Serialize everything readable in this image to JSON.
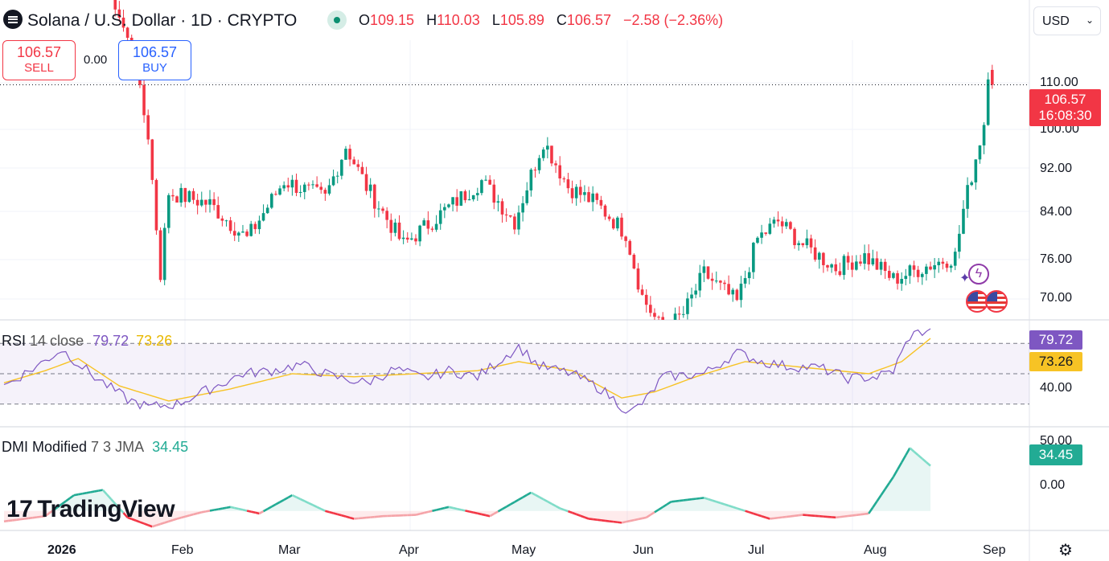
{
  "header": {
    "title": "Solana / U.S. Dollar · 1D · CRYPTO",
    "ohlc": [
      {
        "key": "O",
        "value": "109.15"
      },
      {
        "key": "H",
        "value": "110.03"
      },
      {
        "key": "L",
        "value": "105.89"
      },
      {
        "key": "C",
        "value": "106.57"
      },
      {
        "key": "",
        "value": "−2.58 (−2.36%)"
      }
    ],
    "currency": "USD"
  },
  "trade": {
    "sell_price": "106.57",
    "sell_label": "SELL",
    "spread": "0.00",
    "buy_price": "106.57",
    "buy_label": "BUY"
  },
  "price_axis": {
    "labels": [
      "110.00",
      "100.00",
      "92.00",
      "84.00",
      "76.00",
      "70.00"
    ],
    "last_price": "106.57",
    "countdown": "16:08:30"
  },
  "rsi": {
    "label": "RSI",
    "params": "14 close",
    "value": "79.72",
    "ma_value": "73.26",
    "axis_label": "40.00"
  },
  "dmi": {
    "label": "DMI Modified",
    "params": "7 3 JMA",
    "value": "34.45",
    "axis_labels": [
      "50.00",
      "0.00"
    ]
  },
  "time_axis": [
    "2026",
    "Feb",
    "Mar",
    "Apr",
    "May",
    "Jun",
    "Jul",
    "Aug",
    "Sep"
  ],
  "branding": "TradingView",
  "colors": {
    "up": "#089981",
    "down": "#f23645",
    "rsi": "#7e57c2",
    "rsi_ma": "#f7c325",
    "dmi": "#22ab94"
  },
  "chart_data": [
    {
      "type": "candlestick",
      "title": "Solana / U.S. Dollar · 1D · CRYPTO",
      "ylim": [
        66,
        114
      ],
      "x_range": [
        "2026-01-01",
        "2026-09-01"
      ],
      "anchors": [
        {
          "date": "2026-01-10",
          "close": 128
        },
        {
          "date": "2026-01-25",
          "close": 127
        },
        {
          "date": "2026-02-01",
          "close": 112
        },
        {
          "date": "2026-02-05",
          "close": 98
        },
        {
          "date": "2026-02-08",
          "close": 74
        },
        {
          "date": "2026-02-10",
          "close": 88
        },
        {
          "date": "2026-02-20",
          "close": 86
        },
        {
          "date": "2026-03-01",
          "close": 80
        },
        {
          "date": "2026-03-10",
          "close": 90
        },
        {
          "date": "2026-03-20",
          "close": 87
        },
        {
          "date": "2026-03-25",
          "close": 96
        },
        {
          "date": "2026-03-30",
          "close": 89
        },
        {
          "date": "2026-04-08",
          "close": 79
        },
        {
          "date": "2026-04-20",
          "close": 86
        },
        {
          "date": "2026-04-27",
          "close": 90
        },
        {
          "date": "2026-05-05",
          "close": 83
        },
        {
          "date": "2026-05-12",
          "close": 97
        },
        {
          "date": "2026-05-18",
          "close": 89
        },
        {
          "date": "2026-05-25",
          "close": 86
        },
        {
          "date": "2026-06-01",
          "close": 81
        },
        {
          "date": "2026-06-05",
          "close": 70
        },
        {
          "date": "2026-06-10",
          "close": 64
        },
        {
          "date": "2026-06-15",
          "close": 67
        },
        {
          "date": "2026-06-20",
          "close": 74
        },
        {
          "date": "2026-06-28",
          "close": 69
        },
        {
          "date": "2026-07-03",
          "close": 80
        },
        {
          "date": "2026-07-08",
          "close": 83
        },
        {
          "date": "2026-07-14",
          "close": 79
        },
        {
          "date": "2026-07-22",
          "close": 75
        },
        {
          "date": "2026-07-29",
          "close": 77
        },
        {
          "date": "2026-08-05",
          "close": 73
        },
        {
          "date": "2026-08-12",
          "close": 75
        },
        {
          "date": "2026-08-20",
          "close": 77
        },
        {
          "date": "2026-08-22",
          "close": 85
        },
        {
          "date": "2026-08-25",
          "close": 94
        },
        {
          "date": "2026-08-27",
          "close": 100
        },
        {
          "date": "2026-08-28",
          "close": 109
        },
        {
          "date": "2026-08-29",
          "close": 106.57
        }
      ],
      "last": {
        "open": 109.15,
        "high": 110.03,
        "low": 105.89,
        "close": 106.57
      }
    },
    {
      "type": "line",
      "title": "RSI 14 close",
      "ylim": [
        15,
        85
      ],
      "bands": [
        30,
        50,
        70
      ],
      "series": [
        {
          "name": "RSI",
          "points": [
            [
              0,
              42
            ],
            [
              8,
              55
            ],
            [
              14,
              66
            ],
            [
              22,
              48
            ],
            [
              30,
              33
            ],
            [
              35,
              28
            ],
            [
              42,
              30
            ],
            [
              50,
              40
            ],
            [
              58,
              50
            ],
            [
              65,
              52
            ],
            [
              72,
              56
            ],
            [
              80,
              48
            ],
            [
              88,
              44
            ],
            [
              95,
              53
            ],
            [
              102,
              47
            ],
            [
              108,
              52
            ],
            [
              115,
              48
            ],
            [
              125,
              68
            ],
            [
              130,
              55
            ],
            [
              138,
              50
            ],
            [
              145,
              40
            ],
            [
              152,
              24
            ],
            [
              156,
              33
            ],
            [
              160,
              48
            ],
            [
              170,
              50
            ],
            [
              178,
              64
            ],
            [
              184,
              58
            ],
            [
              190,
              55
            ],
            [
              198,
              54
            ],
            [
              205,
              47
            ],
            [
              212,
              48
            ],
            [
              216,
              52
            ],
            [
              220,
              75
            ],
            [
              225,
              79.72
            ]
          ]
        },
        {
          "name": "MA",
          "points": [
            [
              0,
              44
            ],
            [
              10,
              52
            ],
            [
              18,
              60
            ],
            [
              28,
              42
            ],
            [
              40,
              32
            ],
            [
              55,
              40
            ],
            [
              70,
              50
            ],
            [
              85,
              48
            ],
            [
              100,
              50
            ],
            [
              115,
              52
            ],
            [
              125,
              58
            ],
            [
              138,
              52
            ],
            [
              150,
              34
            ],
            [
              158,
              38
            ],
            [
              168,
              48
            ],
            [
              180,
              58
            ],
            [
              195,
              54
            ],
            [
              210,
              50
            ],
            [
              218,
              58
            ],
            [
              225,
              73.26
            ]
          ]
        }
      ]
    },
    {
      "type": "area",
      "title": "DMI Modified 7 3 JMA",
      "ylim": [
        -10,
        55
      ],
      "series": [
        {
          "name": "DMI",
          "points": [
            [
              0,
              -8
            ],
            [
              10,
              -4
            ],
            [
              17,
              12
            ],
            [
              24,
              16
            ],
            [
              30,
              -5
            ],
            [
              36,
              -12
            ],
            [
              42,
              -6
            ],
            [
              48,
              -1
            ],
            [
              55,
              3
            ],
            [
              62,
              -2
            ],
            [
              70,
              12
            ],
            [
              78,
              0
            ],
            [
              85,
              -6
            ],
            [
              92,
              -4
            ],
            [
              100,
              -3
            ],
            [
              108,
              3
            ],
            [
              118,
              -4
            ],
            [
              128,
              14
            ],
            [
              135,
              2
            ],
            [
              142,
              -6
            ],
            [
              150,
              -9
            ],
            [
              156,
              -5
            ],
            [
              162,
              7
            ],
            [
              170,
              10
            ],
            [
              178,
              2
            ],
            [
              186,
              -6
            ],
            [
              194,
              -3
            ],
            [
              202,
              -5
            ],
            [
              210,
              -2
            ],
            [
              216,
              26
            ],
            [
              220,
              48
            ],
            [
              225,
              34.45
            ]
          ]
        }
      ]
    }
  ]
}
